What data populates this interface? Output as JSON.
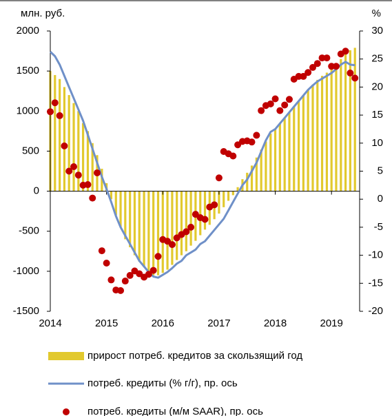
{
  "chart_data": {
    "type": "combo",
    "ylabel": "млн. руб.",
    "y2label": "%",
    "xlim": [
      2014,
      2019.5
    ],
    "xticks": [
      2014,
      2015,
      2016,
      2017,
      2018,
      2019
    ],
    "ylim": [
      -1500,
      2000
    ],
    "yticks": [
      -1500,
      -1000,
      -500,
      0,
      500,
      1000,
      1500,
      2000
    ],
    "y2lim": [
      -20,
      30
    ],
    "y2ticks": [
      -20,
      -15,
      -10,
      -5,
      0,
      5,
      10,
      15,
      20,
      25,
      30
    ],
    "x": [
      2014.0,
      2014.083,
      2014.167,
      2014.25,
      2014.333,
      2014.417,
      2014.5,
      2014.583,
      2014.667,
      2014.75,
      2014.833,
      2014.917,
      2015.0,
      2015.083,
      2015.167,
      2015.25,
      2015.333,
      2015.417,
      2015.5,
      2015.583,
      2015.667,
      2015.75,
      2015.833,
      2015.917,
      2016.0,
      2016.083,
      2016.167,
      2016.25,
      2016.333,
      2016.417,
      2016.5,
      2016.583,
      2016.667,
      2016.75,
      2016.833,
      2016.917,
      2017.0,
      2017.083,
      2017.167,
      2017.25,
      2017.333,
      2017.417,
      2017.5,
      2017.583,
      2017.667,
      2017.75,
      2017.833,
      2017.917,
      2018.0,
      2018.083,
      2018.167,
      2018.25,
      2018.333,
      2018.417,
      2018.5,
      2018.583,
      2018.667,
      2018.75,
      2018.833,
      2018.917,
      2019.0,
      2019.083,
      2019.167,
      2019.25,
      2019.333,
      2019.417
    ],
    "series": [
      {
        "name": "прирост потреб. кредитов за скользящий год",
        "type": "bar",
        "color": "#e2c92e",
        "values": [
          1500,
          1450,
          1400,
          1300,
          1200,
          1100,
          1000,
          850,
          750,
          600,
          450,
          280,
          100,
          -100,
          -300,
          -450,
          -600,
          -700,
          -800,
          -880,
          -950,
          -1000,
          -1050,
          -1050,
          -1020,
          -980,
          -920,
          -860,
          -800,
          -750,
          -680,
          -620,
          -550,
          -480,
          -420,
          -350,
          -280,
          -200,
          -120,
          -50,
          50,
          150,
          230,
          320,
          420,
          520,
          620,
          720,
          780,
          850,
          920,
          980,
          1050,
          1120,
          1200,
          1270,
          1330,
          1390,
          1440,
          1480,
          1530,
          1590,
          1650,
          1720,
          1760,
          1790
        ]
      },
      {
        "name": "потреб. кредиты (% г/г), пр. ось",
        "type": "line",
        "axis": "y2",
        "color": "#6f90c8",
        "values": [
          26.3,
          25.5,
          24,
          22,
          20,
          18,
          16,
          14,
          11.5,
          9,
          6.5,
          4,
          1.8,
          -0.5,
          -3,
          -5,
          -6.5,
          -8,
          -9.5,
          -11,
          -12,
          -13,
          -13.8,
          -14,
          -13.5,
          -13,
          -12.3,
          -11.5,
          -11,
          -10,
          -9.5,
          -9,
          -8,
          -7.5,
          -6.5,
          -5.5,
          -4.5,
          -3.5,
          -2,
          -0.5,
          1,
          2.5,
          3.5,
          5,
          6.5,
          8.5,
          10.5,
          12,
          12.5,
          13.5,
          14.5,
          15.5,
          16.5,
          17.5,
          18.5,
          19.5,
          20.3,
          21,
          21.5,
          22,
          22.5,
          23.2,
          24,
          24.5,
          24,
          23.9
        ]
      },
      {
        "name": "потреб. кредиты (м/м SAAR), пр. ось",
        "type": "scatter",
        "axis": "y2",
        "color": "#c00000",
        "values": [
          15.6,
          17.2,
          14.9,
          9.5,
          5,
          5.8,
          4.3,
          2.5,
          2.6,
          0.2,
          4.7,
          -9.2,
          -11.4,
          -14.4,
          -16.2,
          -16.3,
          -14.6,
          -13.6,
          -12.8,
          -13.3,
          -13.9,
          -13.4,
          -12.7,
          -10.2,
          -7.2,
          -7.5,
          -8.1,
          -6.9,
          -6.3,
          -5.8,
          -5,
          -2.7,
          -3.3,
          -3.6,
          -1.4,
          -1,
          3.8,
          8.5,
          8.1,
          7.7,
          9.7,
          10.3,
          10.4,
          10.2,
          11.4,
          15.8,
          16.7,
          17,
          17.9,
          15.8,
          16.8,
          17.8,
          21.4,
          21.9,
          21.9,
          22.6,
          23.5,
          24.2,
          25.2,
          25.2,
          23.7,
          23.7,
          25.9,
          26.4,
          22.5,
          21.6
        ]
      }
    ]
  }
}
